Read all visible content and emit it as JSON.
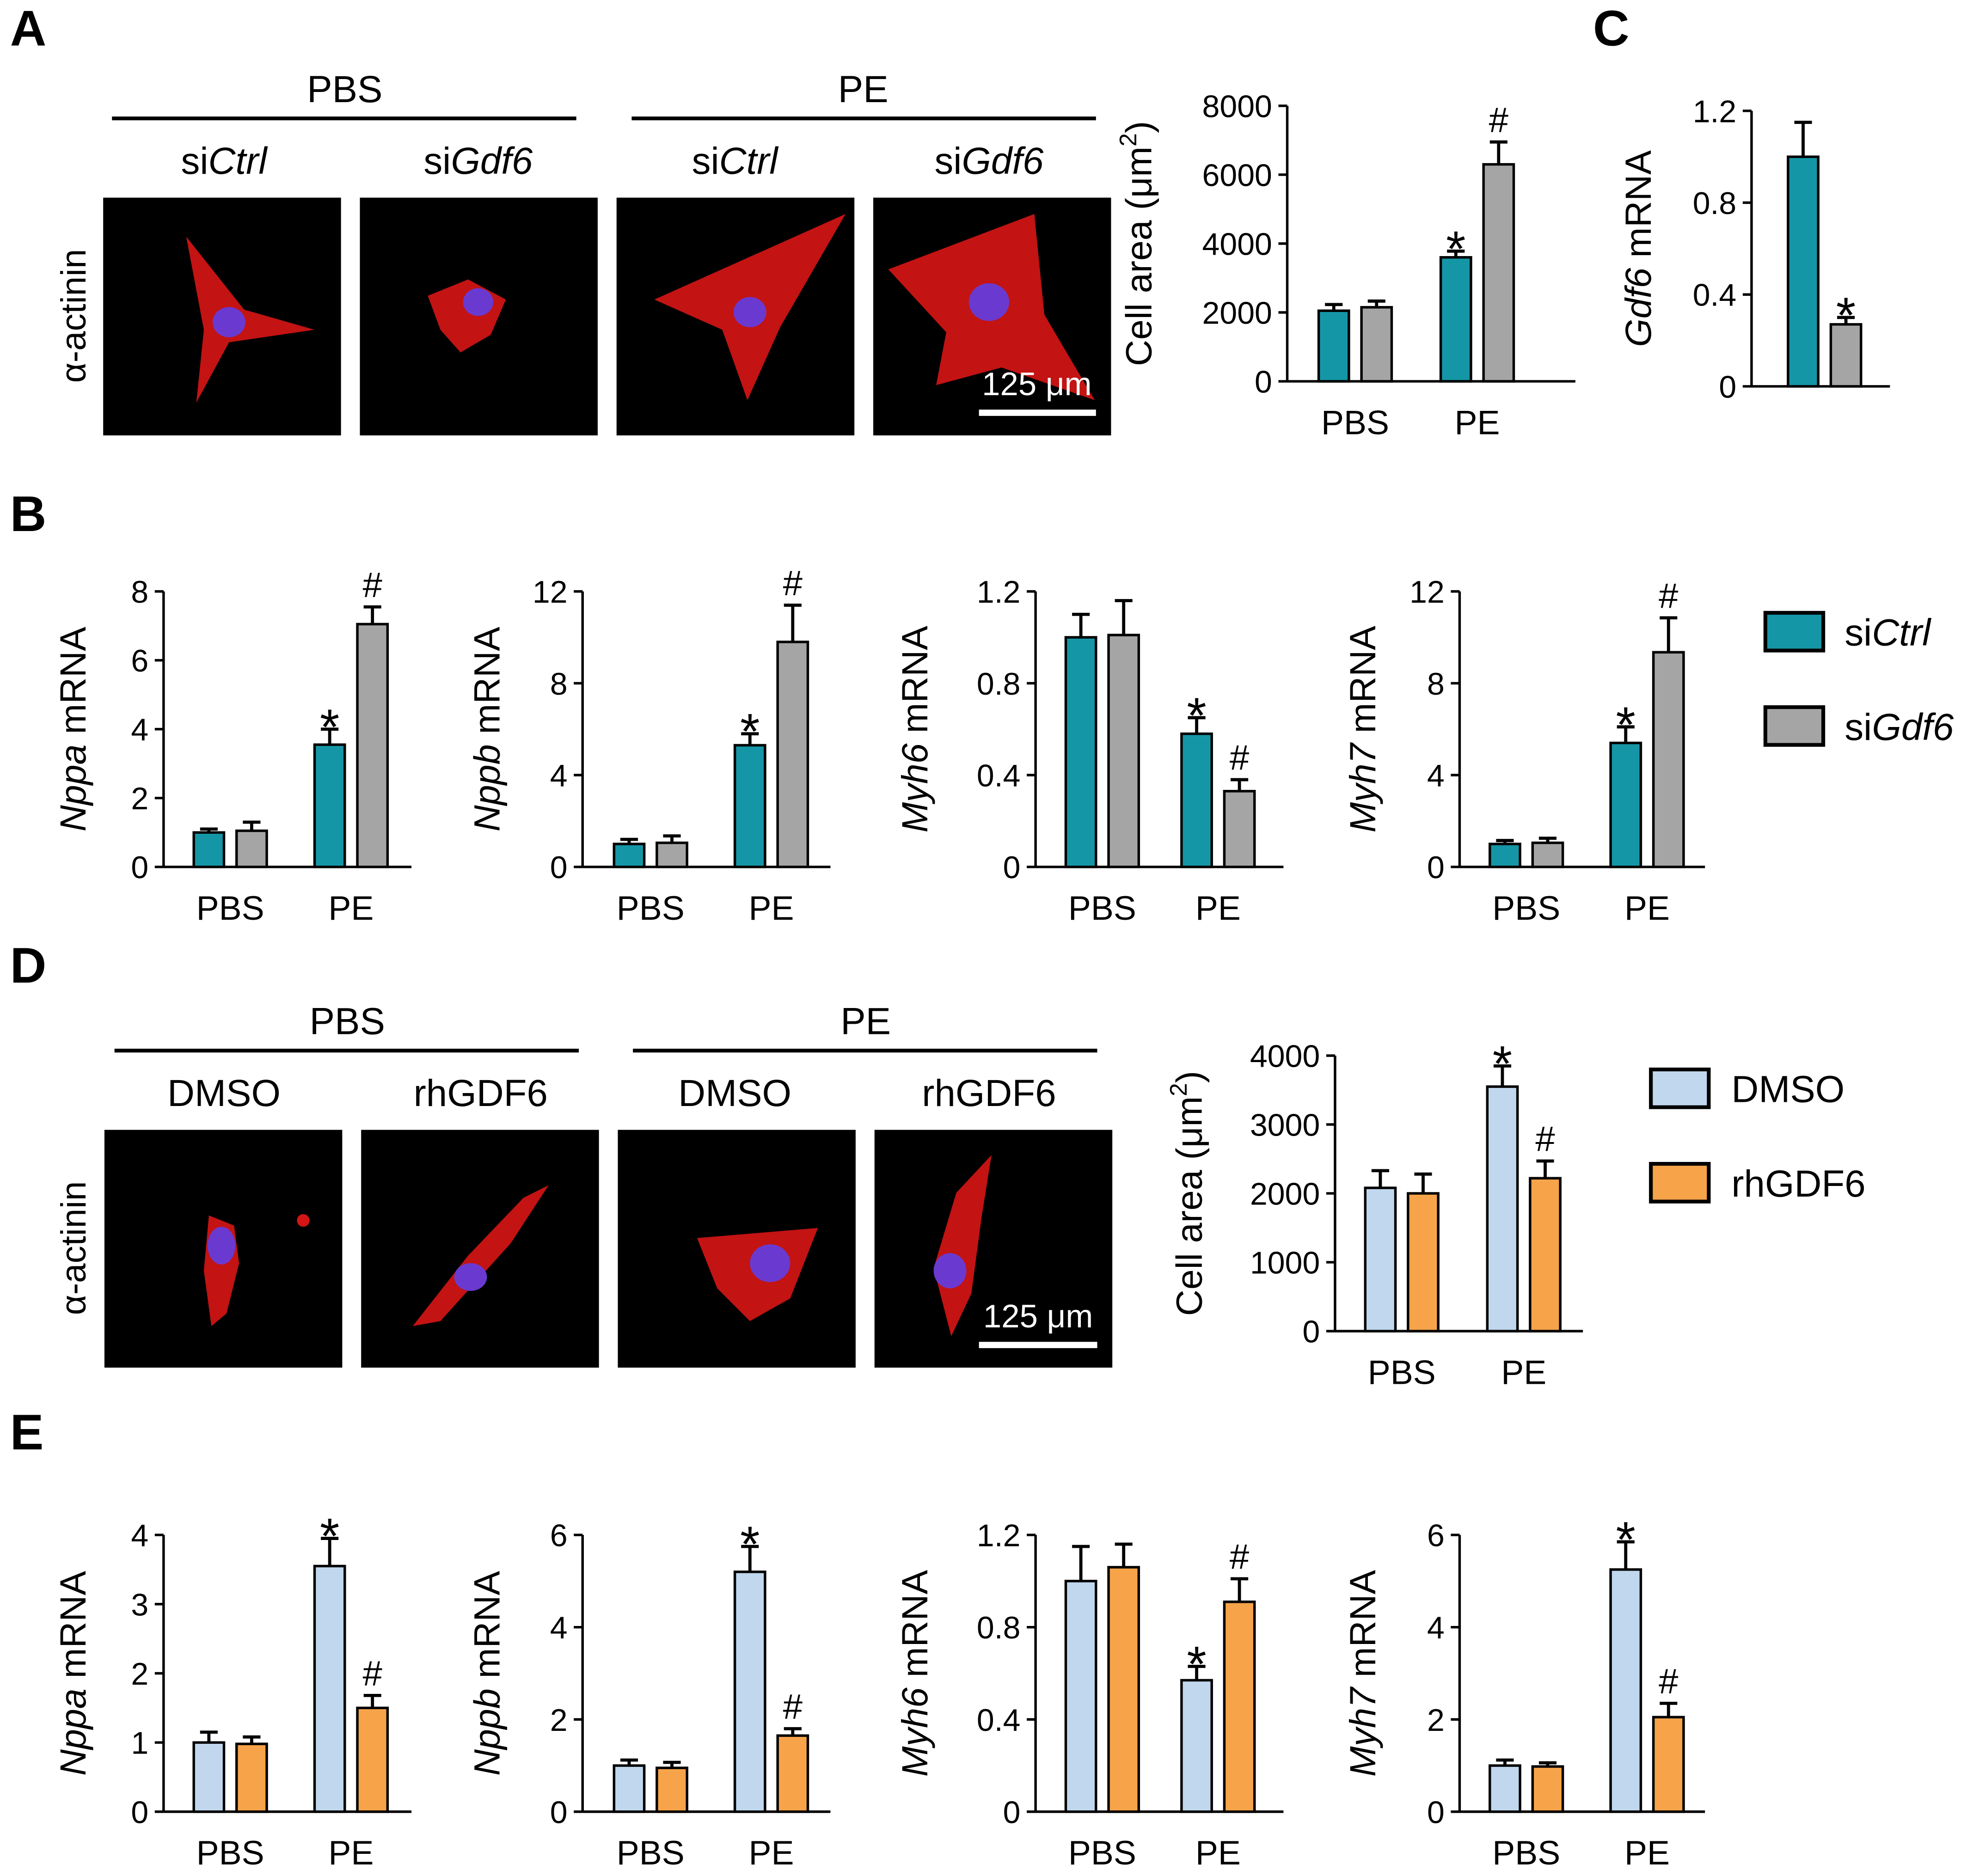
{
  "panel_letters": [
    "A",
    "B",
    "C",
    "D",
    "E"
  ],
  "panel_A": {
    "group_labels": [
      "PBS",
      "PE"
    ],
    "condition_labels": [
      {
        "prefix": "si",
        "gene": "Ctrl"
      },
      {
        "prefix": "si",
        "gene": "Gdf6"
      },
      {
        "prefix": "si",
        "gene": "Ctrl"
      },
      {
        "prefix": "si",
        "gene": "Gdf6"
      }
    ],
    "stain_label": "α-actinin",
    "scale_bar_label": "125 μm"
  },
  "panel_D": {
    "group_labels": [
      "PBS",
      "PE"
    ],
    "condition_labels": [
      "DMSO",
      "rhGDF6",
      "DMSO",
      "rhGDF6"
    ],
    "stain_label": "α-actinin",
    "scale_bar_label": "125 μm"
  },
  "legends": {
    "si": [
      {
        "prefix": "si",
        "gene": "Ctrl",
        "color": "#1596a6"
      },
      {
        "prefix": "si",
        "gene": "Gdf6",
        "color": "#a5a5a5"
      }
    ],
    "drug": [
      {
        "label": "DMSO",
        "color": "#c0d7ee"
      },
      {
        "label": "rhGDF6",
        "color": "#f6a34a"
      }
    ]
  },
  "chart_data": [
    {
      "id": "A_area",
      "type": "bar",
      "categories": [
        "PBS",
        "PE"
      ],
      "ylabel": "Cell area (μm",
      "ylabel_sup": "2",
      "ylabel_tail": ")",
      "ylim": [
        0,
        8000
      ],
      "yticks": [
        "0",
        "2000",
        "4000",
        "6000",
        "8000"
      ],
      "series": [
        {
          "key": "siCtrl",
          "color": "#1596a6",
          "values": [
            2050,
            3600
          ],
          "errors": [
            180,
            180
          ],
          "marks": [
            "",
            "*"
          ]
        },
        {
          "key": "siGdf6",
          "color": "#a5a5a5",
          "values": [
            2150,
            6300
          ],
          "errors": [
            180,
            650
          ],
          "marks": [
            "",
            "#"
          ]
        }
      ]
    },
    {
      "id": "C_gdf6",
      "type": "bar",
      "categories": [
        ""
      ],
      "ylabel_italic": "Gdf6",
      "ylabel": " mRNA",
      "ylim": [
        0,
        1.2
      ],
      "yticks": [
        "0",
        "0.4",
        "0.8",
        "1.2"
      ],
      "series": [
        {
          "key": "siCtrl",
          "color": "#1596a6",
          "values": [
            1.0
          ],
          "errors": [
            0.15
          ],
          "marks": [
            ""
          ]
        },
        {
          "key": "siGdf6",
          "color": "#a5a5a5",
          "values": [
            0.27
          ],
          "errors": [
            0.03
          ],
          "marks": [
            "*"
          ]
        }
      ]
    },
    {
      "id": "B_nppa",
      "type": "bar",
      "categories": [
        "PBS",
        "PE"
      ],
      "ylabel_italic": "Nppa",
      "ylabel": " mRNA",
      "ylim": [
        0,
        8
      ],
      "yticks": [
        "0",
        "2",
        "4",
        "6",
        "8"
      ],
      "series": [
        {
          "key": "siCtrl",
          "color": "#1596a6",
          "values": [
            1.0,
            3.55
          ],
          "errors": [
            0.1,
            0.45
          ],
          "marks": [
            "",
            "*"
          ]
        },
        {
          "key": "siGdf6",
          "color": "#a5a5a5",
          "values": [
            1.05,
            7.05
          ],
          "errors": [
            0.25,
            0.5
          ],
          "marks": [
            "",
            "#"
          ]
        }
      ]
    },
    {
      "id": "B_nppb",
      "type": "bar",
      "categories": [
        "PBS",
        "PE"
      ],
      "ylabel_italic": "Nppb",
      "ylabel": " mRNA",
      "ylim": [
        0,
        12
      ],
      "yticks": [
        "0",
        "4",
        "8",
        "12"
      ],
      "series": [
        {
          "key": "siCtrl",
          "color": "#1596a6",
          "values": [
            1.0,
            5.3
          ],
          "errors": [
            0.2,
            0.5
          ],
          "marks": [
            "",
            "*"
          ]
        },
        {
          "key": "siGdf6",
          "color": "#a5a5a5",
          "values": [
            1.05,
            9.8
          ],
          "errors": [
            0.3,
            1.6
          ],
          "marks": [
            "",
            "#"
          ]
        }
      ]
    },
    {
      "id": "B_myh6",
      "type": "bar",
      "categories": [
        "PBS",
        "PE"
      ],
      "ylabel_italic": "Myh6",
      "ylabel": " mRNA",
      "ylim": [
        0,
        1.2
      ],
      "yticks": [
        "0",
        "0.4",
        "0.8",
        "1.2"
      ],
      "series": [
        {
          "key": "siCtrl",
          "color": "#1596a6",
          "values": [
            1.0,
            0.58
          ],
          "errors": [
            0.1,
            0.07
          ],
          "marks": [
            "",
            "*"
          ]
        },
        {
          "key": "siGdf6",
          "color": "#a5a5a5",
          "values": [
            1.01,
            0.33
          ],
          "errors": [
            0.15,
            0.05
          ],
          "marks": [
            "",
            "#"
          ]
        }
      ]
    },
    {
      "id": "B_myh7",
      "type": "bar",
      "categories": [
        "PBS",
        "PE"
      ],
      "ylabel_italic": "Myh7",
      "ylabel": " mRNA",
      "ylim": [
        0,
        12
      ],
      "yticks": [
        "0",
        "4",
        "8",
        "12"
      ],
      "series": [
        {
          "key": "siCtrl",
          "color": "#1596a6",
          "values": [
            1.0,
            5.4
          ],
          "errors": [
            0.15,
            0.7
          ],
          "marks": [
            "",
            "*"
          ]
        },
        {
          "key": "siGdf6",
          "color": "#a5a5a5",
          "values": [
            1.05,
            9.35
          ],
          "errors": [
            0.2,
            1.5
          ],
          "marks": [
            "",
            "#"
          ]
        }
      ]
    },
    {
      "id": "D_area",
      "type": "bar",
      "categories": [
        "PBS",
        "PE"
      ],
      "ylabel": "Cell area (μm",
      "ylabel_sup": "2",
      "ylabel_tail": ")",
      "ylim": [
        0,
        4000
      ],
      "yticks": [
        "0",
        "1000",
        "2000",
        "3000",
        "4000"
      ],
      "series": [
        {
          "key": "DMSO",
          "color": "#c0d7ee",
          "values": [
            2080,
            3550
          ],
          "errors": [
            250,
            300
          ],
          "marks": [
            "",
            "*"
          ]
        },
        {
          "key": "rhGDF6",
          "color": "#f6a34a",
          "values": [
            2000,
            2220
          ],
          "errors": [
            280,
            250
          ],
          "marks": [
            "",
            "#"
          ]
        }
      ]
    },
    {
      "id": "E_nppa",
      "type": "bar",
      "categories": [
        "PBS",
        "PE"
      ],
      "ylabel_italic": "Nppa",
      "ylabel": " mRNA",
      "ylim": [
        0,
        4
      ],
      "yticks": [
        "0",
        "1",
        "2",
        "3",
        "4"
      ],
      "series": [
        {
          "key": "DMSO",
          "color": "#c0d7ee",
          "values": [
            1.0,
            3.55
          ],
          "errors": [
            0.15,
            0.4
          ],
          "marks": [
            "",
            "*"
          ]
        },
        {
          "key": "rhGDF6",
          "color": "#f6a34a",
          "values": [
            0.98,
            1.5
          ],
          "errors": [
            0.1,
            0.18
          ],
          "marks": [
            "",
            "#"
          ]
        }
      ]
    },
    {
      "id": "E_nppb",
      "type": "bar",
      "categories": [
        "PBS",
        "PE"
      ],
      "ylabel_italic": "Nppb",
      "ylabel": " mRNA",
      "ylim": [
        0,
        6
      ],
      "yticks": [
        "0",
        "2",
        "4",
        "6"
      ],
      "series": [
        {
          "key": "DMSO",
          "color": "#c0d7ee",
          "values": [
            1.0,
            5.2
          ],
          "errors": [
            0.12,
            0.55
          ],
          "marks": [
            "",
            "*"
          ]
        },
        {
          "key": "rhGDF6",
          "color": "#f6a34a",
          "values": [
            0.95,
            1.65
          ],
          "errors": [
            0.12,
            0.15
          ],
          "marks": [
            "",
            "#"
          ]
        }
      ]
    },
    {
      "id": "E_myh6",
      "type": "bar",
      "categories": [
        "PBS",
        "PE"
      ],
      "ylabel_italic": "Myh6",
      "ylabel": " mRNA",
      "ylim": [
        0,
        1.2
      ],
      "yticks": [
        "0",
        "0.4",
        "0.8",
        "1.2"
      ],
      "series": [
        {
          "key": "DMSO",
          "color": "#c0d7ee",
          "values": [
            1.0,
            0.57
          ],
          "errors": [
            0.15,
            0.06
          ],
          "marks": [
            "",
            "*"
          ]
        },
        {
          "key": "rhGDF6",
          "color": "#f6a34a",
          "values": [
            1.06,
            0.91
          ],
          "errors": [
            0.1,
            0.1
          ],
          "marks": [
            "",
            "#"
          ]
        }
      ]
    },
    {
      "id": "E_myh7",
      "type": "bar",
      "categories": [
        "PBS",
        "PE"
      ],
      "ylabel_italic": "Myh7",
      "ylabel": " mRNA",
      "ylim": [
        0,
        6
      ],
      "yticks": [
        "0",
        "2",
        "4",
        "6"
      ],
      "series": [
        {
          "key": "DMSO",
          "color": "#c0d7ee",
          "values": [
            1.0,
            5.25
          ],
          "errors": [
            0.12,
            0.6
          ],
          "marks": [
            "",
            "*"
          ]
        },
        {
          "key": "rhGDF6",
          "color": "#f6a34a",
          "values": [
            0.98,
            2.05
          ],
          "errors": [
            0.08,
            0.3
          ],
          "marks": [
            "",
            "#"
          ]
        }
      ]
    }
  ]
}
